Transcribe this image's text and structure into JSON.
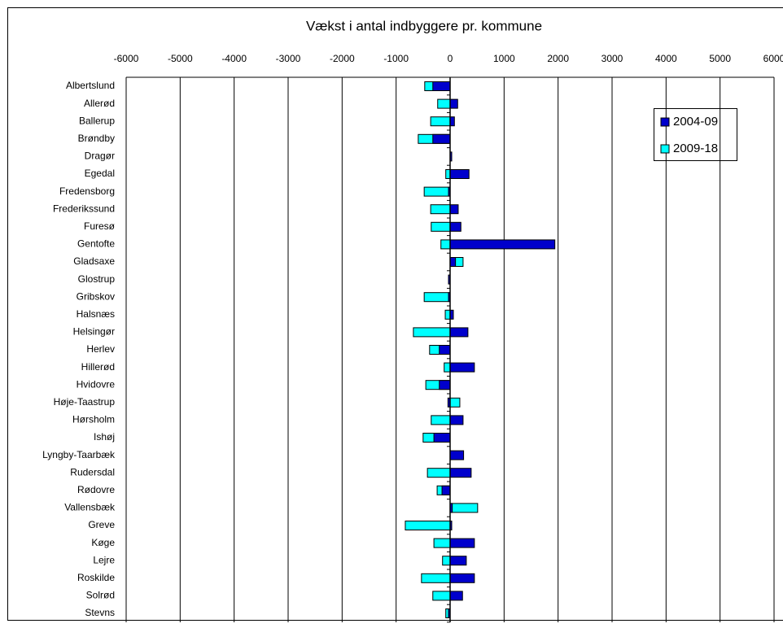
{
  "chart_data": {
    "type": "barh",
    "title": "Vækst i antal indbyggere pr. kommune",
    "categories": [
      "Albertslund",
      "Allerød",
      "Ballerup",
      "Brøndby",
      "Dragør",
      "Egedal",
      "Fredensborg",
      "Frederikssund",
      "Furesø",
      "Gentofte",
      "Gladsaxe",
      "Glostrup",
      "Gribskov",
      "Halsnæs",
      "Helsingør",
      "Herlev",
      "Hillerød",
      "Hvidovre",
      "Høje-Taastrup",
      "Hørsholm",
      "Ishøj",
      "Lyngby-Taarbæk",
      "Rudersdal",
      "Rødovre",
      "Vallensbæk",
      "Greve",
      "Køge",
      "Lejre",
      "Roskilde",
      "Solrød",
      "Stevns"
    ],
    "series": [
      {
        "name": "2009-18",
        "color": "#00ffff",
        "values": [
          -470,
          -230,
          -360,
          -590,
          10,
          -80,
          -480,
          -360,
          -350,
          -170,
          240,
          -10,
          -480,
          -90,
          -680,
          -380,
          -110,
          -450,
          180,
          -350,
          -500,
          10,
          -420,
          -240,
          510,
          -830,
          -300,
          -140,
          -530,
          -320,
          -80
        ]
      },
      {
        "name": "2004-09",
        "color": "#0000cc",
        "values": [
          -320,
          140,
          80,
          -320,
          30,
          350,
          -30,
          150,
          200,
          1940,
          100,
          -30,
          -30,
          60,
          330,
          -200,
          450,
          -200,
          -40,
          240,
          -300,
          250,
          390,
          -150,
          40,
          30,
          450,
          300,
          450,
          230,
          -30
        ]
      }
    ],
    "legend_order": [
      1,
      0
    ],
    "xlim": [
      -6000,
      6000
    ],
    "xticks": [
      -6000,
      -5000,
      -4000,
      -3000,
      -2000,
      -1000,
      0,
      1000,
      2000,
      3000,
      4000,
      5000,
      6000
    ],
    "grid": true
  }
}
